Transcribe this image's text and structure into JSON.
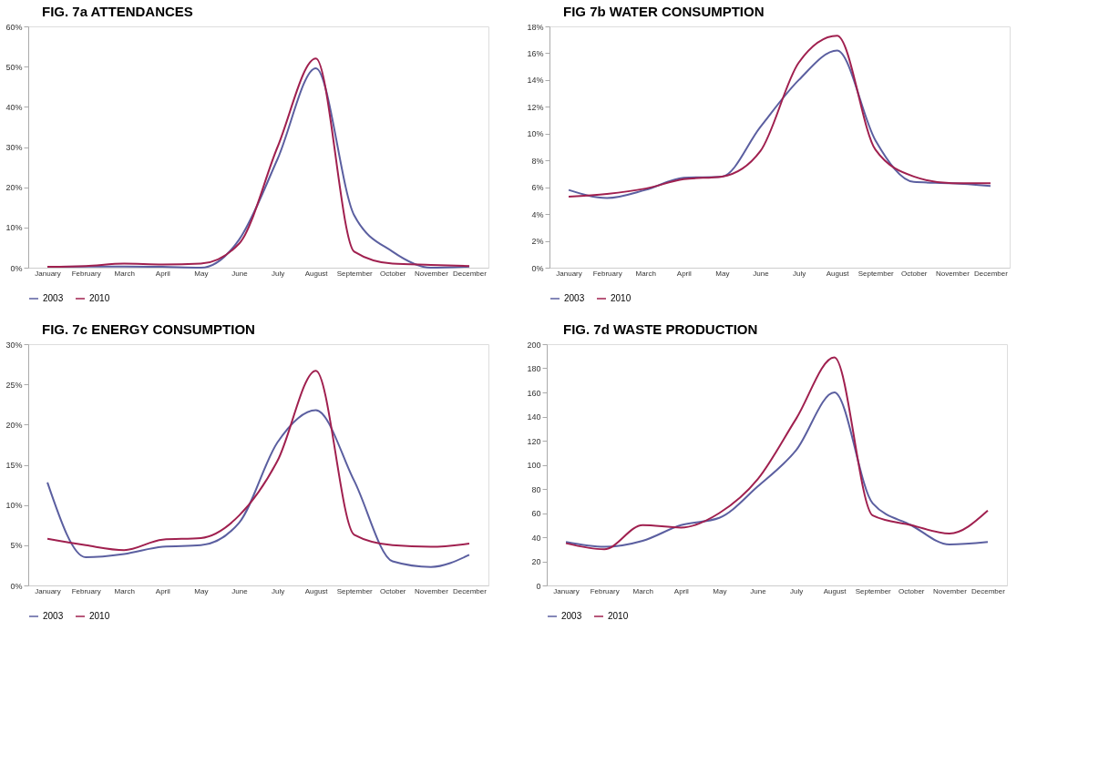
{
  "chart_data": [
    {
      "type": "line",
      "title": "FIG. 7a ATTENDANCES",
      "categories": [
        "January",
        "February",
        "March",
        "April",
        "May",
        "June",
        "July",
        "August",
        "September",
        "October",
        "November",
        "December"
      ],
      "series": [
        {
          "name": "2003",
          "color": "#5b5fa0",
          "values": [
            0.2,
            0.3,
            0.3,
            0.2,
            0,
            7,
            27,
            49.6,
            13,
            4,
            0,
            0.3
          ]
        },
        {
          "name": "2010",
          "color": "#a0204f",
          "values": [
            0.2,
            0.4,
            1,
            0.8,
            1,
            6,
            30,
            52,
            4,
            1,
            0.7,
            0.4
          ]
        }
      ],
      "ylim": [
        0,
        60
      ],
      "yticks": [
        {
          "value": 0,
          "label": "0%"
        },
        {
          "value": 10,
          "label": "10%"
        },
        {
          "value": 20,
          "label": "20%"
        },
        {
          "value": 30,
          "label": "30%"
        },
        {
          "value": 40,
          "label": "40%"
        },
        {
          "value": 50,
          "label": "50%"
        },
        {
          "value": 60,
          "label": "60%"
        }
      ],
      "grid": false,
      "legend": "bottom"
    },
    {
      "type": "line",
      "title": "FIG 7b WATER CONSUMPTION",
      "categories": [
        "January",
        "February",
        "March",
        "April",
        "May",
        "June",
        "July",
        "August",
        "September",
        "October",
        "November",
        "December"
      ],
      "series": [
        {
          "name": "2003",
          "color": "#5b5fa0",
          "values": [
            5.8,
            5.2,
            5.8,
            6.7,
            6.8,
            10.5,
            14,
            16.2,
            9.5,
            6.4,
            6.3,
            6.1
          ]
        },
        {
          "name": "2010",
          "color": "#a0204f",
          "values": [
            5.3,
            5.5,
            5.9,
            6.6,
            6.8,
            8.7,
            15.3,
            17.3,
            8.8,
            6.8,
            6.3,
            6.3
          ]
        }
      ],
      "ylim": [
        0,
        18
      ],
      "yticks": [
        {
          "value": 0,
          "label": "0%"
        },
        {
          "value": 2,
          "label": "2%"
        },
        {
          "value": 4,
          "label": "4%"
        },
        {
          "value": 6,
          "label": "6%"
        },
        {
          "value": 8,
          "label": "8%"
        },
        {
          "value": 10,
          "label": "10%"
        },
        {
          "value": 12,
          "label": "12%"
        },
        {
          "value": 14,
          "label": "14%"
        },
        {
          "value": 16,
          "label": "16%"
        },
        {
          "value": 18,
          "label": "18%"
        }
      ],
      "grid": false,
      "legend": "bottom"
    },
    {
      "type": "line",
      "title": "FIG. 7c ENERGY CONSUMPTION",
      "categories": [
        "January",
        "February",
        "March",
        "April",
        "May",
        "June",
        "July",
        "August",
        "September",
        "October",
        "November",
        "December"
      ],
      "series": [
        {
          "name": "2003",
          "color": "#5b5fa0",
          "values": [
            12.8,
            3.5,
            3.9,
            4.8,
            5.0,
            7.8,
            17.8,
            21.8,
            13,
            3.0,
            2.3,
            3.8
          ]
        },
        {
          "name": "2010",
          "color": "#a0204f",
          "values": [
            5.8,
            5.0,
            4.4,
            5.7,
            5.9,
            8.7,
            15.5,
            26.7,
            6.3,
            5.0,
            4.8,
            5.2
          ]
        }
      ],
      "ylim": [
        0,
        30
      ],
      "yticks": [
        {
          "value": 0,
          "label": "0%"
        },
        {
          "value": 5,
          "label": "5%"
        },
        {
          "value": 10,
          "label": "10%"
        },
        {
          "value": 15,
          "label": "15%"
        },
        {
          "value": 20,
          "label": "20%"
        },
        {
          "value": 25,
          "label": "25%"
        },
        {
          "value": 30,
          "label": "30%"
        }
      ],
      "grid": false,
      "legend": "bottom"
    },
    {
      "type": "line",
      "title": "FIG. 7d WASTE PRODUCTION",
      "categories": [
        "January",
        "February",
        "March",
        "April",
        "May",
        "June",
        "July",
        "August",
        "September",
        "October",
        "November",
        "December"
      ],
      "series": [
        {
          "name": "2003",
          "color": "#5b5fa0",
          "values": [
            36,
            32,
            37,
            50,
            56,
            82,
            112,
            160,
            68,
            50,
            34,
            36
          ]
        },
        {
          "name": "2010",
          "color": "#a0204f",
          "values": [
            35,
            30,
            50,
            48,
            60,
            88,
            138,
            189,
            58,
            50,
            43,
            62
          ]
        }
      ],
      "ylim": [
        0,
        200
      ],
      "yticks": [
        0,
        20,
        40,
        60,
        80,
        100,
        120,
        140,
        160,
        180,
        200
      ],
      "grid": false,
      "legend": "bottom"
    }
  ]
}
